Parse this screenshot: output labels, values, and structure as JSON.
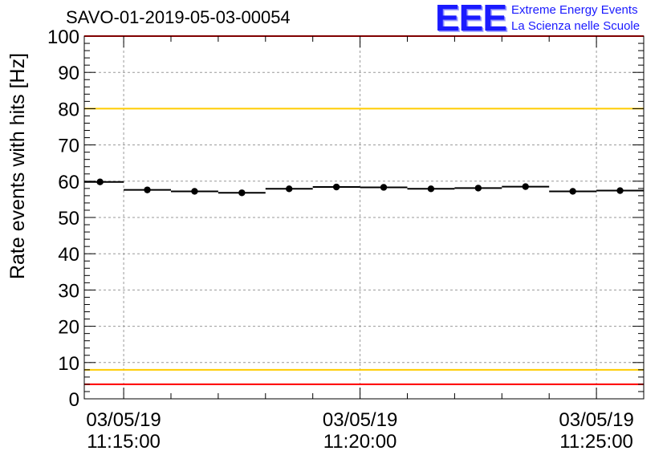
{
  "title": "SAVO-01-2019-05-03-00054",
  "logo": {
    "mark": "EEE",
    "line1": "Extreme Energy Events",
    "line2": "La Scienza nelle Scuole",
    "color": "#1a1aff"
  },
  "chart_data": {
    "type": "scatter",
    "title": "SAVO-01-2019-05-03-00054",
    "xlabel": "",
    "ylabel": "Rate events with hits [Hz]",
    "ylim": [
      0,
      100
    ],
    "yticks": [
      0,
      10,
      20,
      30,
      40,
      50,
      60,
      70,
      80,
      90,
      100
    ],
    "xlim": [
      "11:14:10",
      "11:26:00"
    ],
    "xtick_labels": [
      {
        "date": "03/05/19",
        "time": "11:15:00"
      },
      {
        "date": "03/05/19",
        "time": "11:20:00"
      },
      {
        "date": "03/05/19",
        "time": "11:25:00"
      }
    ],
    "grid": true,
    "series": [
      {
        "marker": "circle",
        "color": "#000000",
        "bin_width_seconds": 60,
        "x": [
          "11:14:30",
          "11:15:30",
          "11:16:30",
          "11:17:30",
          "11:18:30",
          "11:19:30",
          "11:20:30",
          "11:21:30",
          "11:22:30",
          "11:23:30",
          "11:24:30",
          "11:25:30"
        ],
        "y": [
          59.8,
          57.6,
          57.2,
          56.8,
          57.9,
          58.4,
          58.3,
          57.9,
          58.1,
          58.5,
          57.2,
          57.4
        ]
      }
    ],
    "reference_lines": [
      {
        "y": 100,
        "color": "#ff0000"
      },
      {
        "y": 80,
        "color": "#ffcc00"
      },
      {
        "y": 8,
        "color": "#ffcc00"
      },
      {
        "y": 4,
        "color": "#ff0000"
      }
    ]
  }
}
